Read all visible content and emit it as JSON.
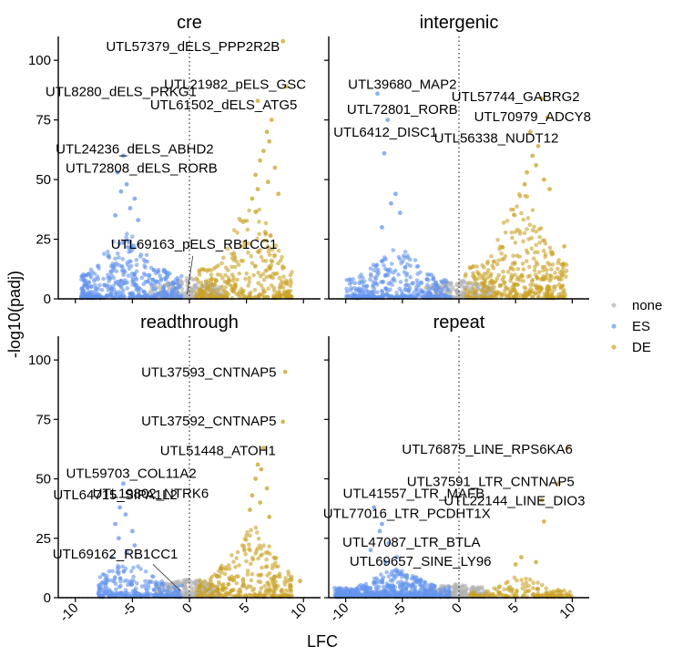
{
  "chart_data": {
    "type": "scatter",
    "title": "",
    "xlabel": "LFC",
    "ylabel": "-log10(padj)",
    "xlim": [
      -11.5,
      11.5
    ],
    "ylim": [
      0,
      110
    ],
    "xticks": [
      -10,
      -5,
      0,
      5,
      10
    ],
    "xtick_labels": [
      "-10",
      "-5",
      "0",
      "5",
      "10"
    ],
    "yticks": [
      0,
      25,
      50,
      75,
      100
    ],
    "ytick_labels": [
      "0",
      "25",
      "50",
      "75",
      "100"
    ],
    "grid": false,
    "legend": {
      "placement": "right",
      "entries": [
        {
          "label": "none",
          "color": "#b3b3b3"
        },
        {
          "label": "ES",
          "color": "#6495ed"
        },
        {
          "label": "DE",
          "color": "#c9a227"
        }
      ]
    },
    "reference_lines": {
      "vertical_x": 0,
      "horizontal_y": 0,
      "style": "dotted"
    },
    "panels": [
      {
        "title": "cre",
        "clouds": [
          {
            "group": "none",
            "xmin": -3.5,
            "xmax": 3.0,
            "ymax": 9,
            "n": 240
          },
          {
            "group": "ES",
            "xmin": -9.5,
            "xmax": -0.6,
            "ymax": 28,
            "n": 420
          },
          {
            "group": "DE",
            "xmin": 0.5,
            "xmax": 9.0,
            "ymax": 40,
            "n": 320
          }
        ],
        "points": [
          {
            "x": -5.8,
            "y": 60,
            "group": "ES"
          },
          {
            "x": -6.3,
            "y": 53,
            "group": "ES"
          },
          {
            "x": -5.5,
            "y": 48,
            "group": "ES"
          },
          {
            "x": -6.0,
            "y": 45,
            "group": "ES"
          },
          {
            "x": -4.8,
            "y": 42,
            "group": "ES"
          },
          {
            "x": -5.2,
            "y": 38,
            "group": "ES"
          },
          {
            "x": -6.5,
            "y": 35,
            "group": "ES"
          },
          {
            "x": -4.5,
            "y": 33,
            "group": "ES"
          },
          {
            "x": -3.2,
            "y": 8,
            "group": "ES"
          },
          {
            "x": 7.2,
            "y": 75,
            "group": "DE"
          },
          {
            "x": 6.8,
            "y": 70,
            "group": "DE"
          },
          {
            "x": 7.0,
            "y": 66,
            "group": "DE"
          },
          {
            "x": 6.5,
            "y": 62,
            "group": "DE"
          },
          {
            "x": 6.2,
            "y": 58,
            "group": "DE"
          },
          {
            "x": 7.5,
            "y": 55,
            "group": "DE"
          },
          {
            "x": 5.8,
            "y": 52,
            "group": "DE"
          },
          {
            "x": 6.9,
            "y": 49,
            "group": "DE"
          },
          {
            "x": 6.0,
            "y": 46,
            "group": "DE"
          },
          {
            "x": 7.8,
            "y": 44,
            "group": "DE"
          },
          {
            "x": 5.5,
            "y": 42,
            "group": "DE"
          },
          {
            "x": 8.2,
            "y": 108,
            "group": "DE"
          },
          {
            "x": 8.5,
            "y": 89,
            "group": "DE"
          },
          {
            "x": 6.0,
            "y": 83,
            "group": "DE"
          }
        ],
        "labels": [
          {
            "text": "UTL57379_dELS_PPP2R2B",
            "x": 0.3,
            "y": 105.5
          },
          {
            "text": "UTL21982_pELS_GSC",
            "x": 4.0,
            "y": 89.5
          },
          {
            "text": "UTL8280_dELS_PRKG1",
            "x": -6.0,
            "y": 86.5
          },
          {
            "text": "UTL61502_dELS_ATG5",
            "x": 3.0,
            "y": 81.0
          },
          {
            "text": "UTL24236_dELS_ABHD2",
            "x": -4.8,
            "y": 62.5
          },
          {
            "text": "UTL72808_dELS_RORB",
            "x": -4.2,
            "y": 54.5
          },
          {
            "text": "UTL69163_pELS_RB1CC1",
            "x": 0.4,
            "y": 22.5
          }
        ]
      },
      {
        "title": "intergenic",
        "clouds": [
          {
            "group": "none",
            "xmin": -3.0,
            "xmax": 3.0,
            "ymax": 8,
            "n": 220
          },
          {
            "group": "ES",
            "xmin": -10.0,
            "xmax": -0.6,
            "ymax": 22,
            "n": 360
          },
          {
            "group": "DE",
            "xmin": 0.5,
            "xmax": 9.5,
            "ymax": 45,
            "n": 380
          }
        ],
        "points": [
          {
            "x": -7.2,
            "y": 86,
            "group": "ES"
          },
          {
            "x": -6.3,
            "y": 75,
            "group": "ES"
          },
          {
            "x": -6.6,
            "y": 61,
            "group": "ES"
          },
          {
            "x": -5.6,
            "y": 44,
            "group": "ES"
          },
          {
            "x": -6.0,
            "y": 40,
            "group": "ES"
          },
          {
            "x": -5.2,
            "y": 36,
            "group": "ES"
          },
          {
            "x": -6.8,
            "y": 30,
            "group": "ES"
          },
          {
            "x": 7.3,
            "y": 84,
            "group": "DE"
          },
          {
            "x": 7.8,
            "y": 76,
            "group": "DE"
          },
          {
            "x": 6.3,
            "y": 70,
            "group": "DE"
          },
          {
            "x": 7.0,
            "y": 64,
            "group": "DE"
          },
          {
            "x": 6.5,
            "y": 60,
            "group": "DE"
          },
          {
            "x": 6.8,
            "y": 56,
            "group": "DE"
          },
          {
            "x": 6.0,
            "y": 53,
            "group": "DE"
          },
          {
            "x": 7.5,
            "y": 50,
            "group": "DE"
          },
          {
            "x": 5.8,
            "y": 48,
            "group": "DE"
          },
          {
            "x": 8.0,
            "y": 46,
            "group": "DE"
          },
          {
            "x": 9.3,
            "y": 22,
            "group": "DE"
          }
        ],
        "labels": [
          {
            "text": "UTL39680_MAP2",
            "x": -5.0,
            "y": 89.5
          },
          {
            "text": "UTL57744_GABRG2",
            "x": 5.0,
            "y": 84.5
          },
          {
            "text": "UTL72801_RORB",
            "x": -5.0,
            "y": 79.0
          },
          {
            "text": "UTL70979_ADCY8",
            "x": 6.5,
            "y": 76.0
          },
          {
            "text": "UTL6412_DISC1",
            "x": -6.5,
            "y": 69.5
          },
          {
            "text": "UTL56338_NUDT12",
            "x": 3.3,
            "y": 67.0
          }
        ]
      },
      {
        "title": "readthrough",
        "clouds": [
          {
            "group": "none",
            "xmin": -3.0,
            "xmax": 2.5,
            "ymax": 8,
            "n": 220
          },
          {
            "group": "ES",
            "xmin": -8.0,
            "xmax": -0.6,
            "ymax": 15,
            "n": 260
          },
          {
            "group": "DE",
            "xmin": 0.6,
            "xmax": 9.0,
            "ymax": 30,
            "n": 300
          }
        ],
        "points": [
          {
            "x": 8.4,
            "y": 95,
            "group": "DE"
          },
          {
            "x": 8.2,
            "y": 74,
            "group": "DE"
          },
          {
            "x": 6.5,
            "y": 63,
            "group": "DE"
          },
          {
            "x": 6.0,
            "y": 56,
            "group": "DE"
          },
          {
            "x": 6.3,
            "y": 54,
            "group": "DE"
          },
          {
            "x": 5.8,
            "y": 50,
            "group": "DE"
          },
          {
            "x": 6.8,
            "y": 46,
            "group": "DE"
          },
          {
            "x": 5.5,
            "y": 43,
            "group": "DE"
          },
          {
            "x": 6.2,
            "y": 40,
            "group": "DE"
          },
          {
            "x": 5.3,
            "y": 37,
            "group": "DE"
          },
          {
            "x": 7.0,
            "y": 34,
            "group": "DE"
          },
          {
            "x": 9.7,
            "y": 7,
            "group": "DE"
          },
          {
            "x": -5.8,
            "y": 48,
            "group": "ES"
          },
          {
            "x": -6.1,
            "y": 38,
            "group": "ES"
          },
          {
            "x": -5.6,
            "y": 35,
            "group": "ES"
          },
          {
            "x": -6.5,
            "y": 31,
            "group": "ES"
          },
          {
            "x": -5.0,
            "y": 28,
            "group": "ES"
          },
          {
            "x": -6.2,
            "y": 25,
            "group": "ES"
          },
          {
            "x": -4.8,
            "y": 22,
            "group": "ES"
          },
          {
            "x": -5.5,
            "y": 19,
            "group": "ES"
          },
          {
            "x": -6.8,
            "y": 17,
            "group": "ES"
          }
        ],
        "labels": [
          {
            "text": "UTL37593_CNTNAP5",
            "x": 1.7,
            "y": 94.5
          },
          {
            "text": "UTL37592_CNTNAP5",
            "x": 1.7,
            "y": 74.0
          },
          {
            "text": "UTL51448_ATOH1",
            "x": 2.5,
            "y": 61.5
          },
          {
            "text": "UTL59703_COL11A2",
            "x": -5.1,
            "y": 52.0
          },
          {
            "text": "UTL19802_NTRK6",
            "x": -3.4,
            "y": 43.5
          },
          {
            "text": "UTL64715_SIPA1L2",
            "x": -6.5,
            "y": 43.0
          },
          {
            "text": "UTL69162_RB1CC1",
            "x": -6.5,
            "y": 18.0
          }
        ]
      },
      {
        "title": "repeat",
        "clouds": [
          {
            "group": "none",
            "xmin": -3.0,
            "xmax": 2.5,
            "ymax": 6,
            "n": 220
          },
          {
            "group": "ES",
            "xmin": -11.0,
            "xmax": -0.8,
            "ymax": 12,
            "n": 600
          },
          {
            "group": "DE",
            "xmin": 0.6,
            "xmax": 10.0,
            "ymax": 10,
            "n": 150
          }
        ],
        "points": [
          {
            "x": 9.6,
            "y": 63,
            "group": "DE"
          },
          {
            "x": 8.8,
            "y": 48,
            "group": "DE"
          },
          {
            "x": 7.3,
            "y": 41,
            "group": "DE"
          },
          {
            "x": 7.5,
            "y": 32,
            "group": "DE"
          },
          {
            "x": 5.5,
            "y": 17,
            "group": "DE"
          },
          {
            "x": 6.8,
            "y": 15,
            "group": "DE"
          },
          {
            "x": 5.0,
            "y": 14,
            "group": "DE"
          },
          {
            "x": -7.5,
            "y": 38,
            "group": "ES"
          },
          {
            "x": -6.8,
            "y": 31,
            "group": "ES"
          },
          {
            "x": -7.0,
            "y": 28,
            "group": "ES"
          },
          {
            "x": -6.2,
            "y": 23,
            "group": "ES"
          },
          {
            "x": -7.8,
            "y": 20,
            "group": "ES"
          },
          {
            "x": -5.5,
            "y": 17,
            "group": "ES"
          },
          {
            "x": -6.5,
            "y": 15,
            "group": "ES"
          }
        ],
        "labels": [
          {
            "text": "UTL76875_LINE_RPS6KA6",
            "x": 2.5,
            "y": 62.0
          },
          {
            "text": "UTL37591_LTR_CNTNAP5",
            "x": 2.8,
            "y": 48.5
          },
          {
            "text": "UTL41557_LTR_MAFB",
            "x": -4.0,
            "y": 43.5
          },
          {
            "text": "UTL22144_LINE_DIO3",
            "x": 4.9,
            "y": 40.5
          },
          {
            "text": "UTL77016_LTR_PCDHT1X",
            "x": -4.6,
            "y": 35.0
          },
          {
            "text": "UTL47087_LTR_BTLA",
            "x": -4.2,
            "y": 23.0
          },
          {
            "text": "UTL69657_SINE_LY96",
            "x": -3.4,
            "y": 15.0
          }
        ]
      }
    ]
  }
}
